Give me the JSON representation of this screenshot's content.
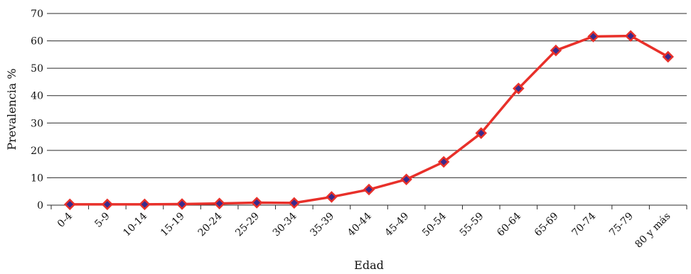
{
  "chart_data": {
    "type": "line",
    "title": "",
    "xlabel": "Edad",
    "ylabel": "Prevalencia %",
    "ylim": [
      0,
      70
    ],
    "yticks": [
      0,
      10,
      20,
      30,
      40,
      50,
      60,
      70
    ],
    "grid": "horizontal",
    "legend": "none",
    "categories": [
      "0-4",
      "5-9",
      "10-14",
      "15-19",
      "20-24",
      "25-29",
      "30-34",
      "35-39",
      "40-44",
      "45-49",
      "50-54",
      "55-59",
      "60-64",
      "65-69",
      "70-74",
      "75-79",
      "80 y más"
    ],
    "series": [
      {
        "values": [
          0.3,
          0.3,
          0.3,
          0.4,
          0.6,
          0.9,
          0.8,
          3.0,
          5.7,
          9.4,
          15.8,
          26.3,
          42.6,
          56.5,
          61.6,
          61.8,
          54.2
        ],
        "line_color": "#e8302a",
        "marker": "diamond",
        "marker_color": "#3a2a8c",
        "marker_edge_color": "#e8302a"
      }
    ]
  }
}
